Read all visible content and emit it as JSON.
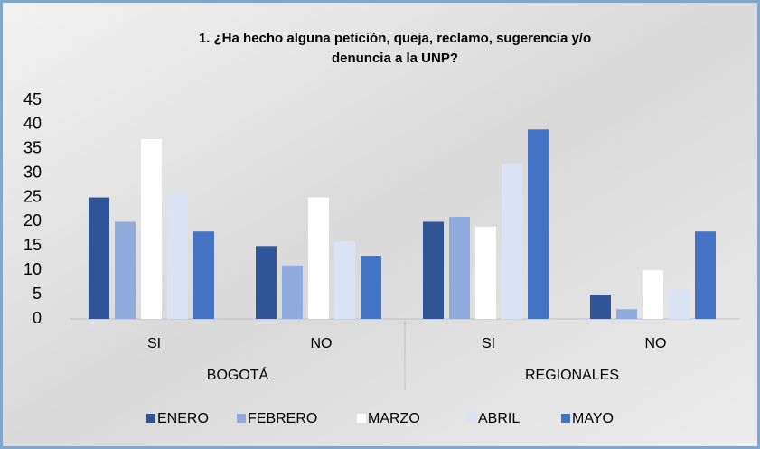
{
  "chart_data": {
    "type": "bar",
    "title": [
      "1. ¿Ha hecho alguna petición, queja, reclamo, sugerencia y/o",
      "denuncia a la UNP?"
    ],
    "groups": [
      {
        "label": "BOGOTÁ",
        "categories": [
          "SI",
          "NO"
        ]
      },
      {
        "label": "REGIONALES",
        "categories": [
          "SI",
          "NO"
        ]
      }
    ],
    "series": [
      {
        "name": "ENERO",
        "color": "#2f5597",
        "values": [
          25,
          15,
          20,
          5
        ]
      },
      {
        "name": "FEBRERO",
        "color": "#8faadc",
        "values": [
          20,
          11,
          21,
          2
        ]
      },
      {
        "name": "MARZO",
        "color": "#ffffff",
        "values": [
          37,
          25,
          19,
          10
        ]
      },
      {
        "name": "ABRIL",
        "color": "#dae3f3",
        "values": [
          26,
          16,
          32,
          6
        ]
      },
      {
        "name": "MAYO",
        "color": "#4472c4",
        "values": [
          18,
          13,
          39,
          18
        ]
      }
    ],
    "ylim": [
      0,
      45
    ],
    "yticks": [
      0,
      5,
      10,
      15,
      20,
      25,
      30,
      35,
      40,
      45
    ],
    "grid": false
  }
}
